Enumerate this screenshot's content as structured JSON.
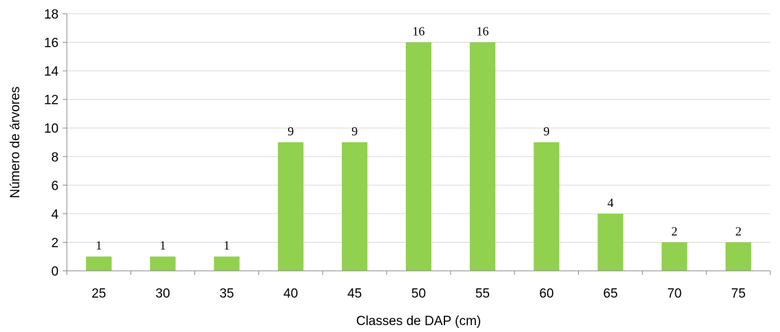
{
  "chart_data": {
    "type": "bar",
    "categories": [
      "25",
      "30",
      "35",
      "40",
      "45",
      "50",
      "55",
      "60",
      "65",
      "70",
      "75"
    ],
    "values": [
      1,
      1,
      1,
      9,
      9,
      16,
      16,
      9,
      4,
      2,
      2
    ],
    "data_labels": [
      "1",
      "1",
      "1",
      "9",
      "9",
      "16",
      "16",
      "9",
      "4",
      "2",
      "2"
    ],
    "xlabel": "Classes de DAP (cm)",
    "ylabel": "Número de árvores",
    "ylim": [
      0,
      18
    ],
    "yticks": [
      "0",
      "2",
      "4",
      "6",
      "8",
      "10",
      "12",
      "14",
      "16",
      "18"
    ],
    "grid": true,
    "legend": "none",
    "colors": {
      "bar": "#92d050",
      "grid": "#d9d9d9",
      "axis": "#868686"
    }
  }
}
